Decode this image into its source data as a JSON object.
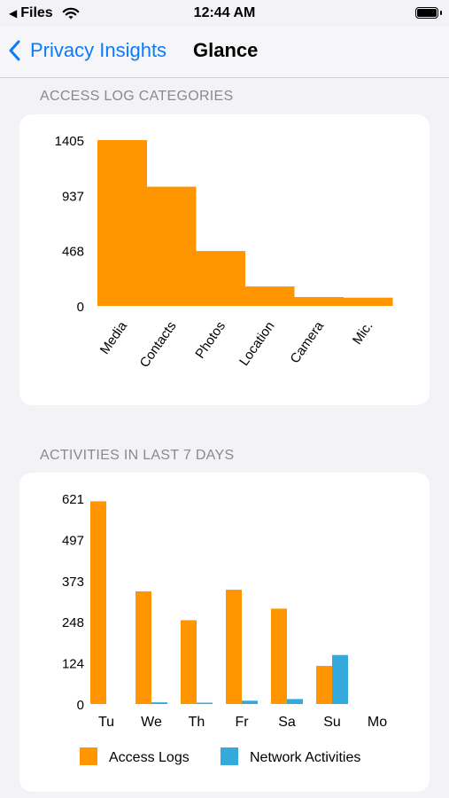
{
  "status_bar": {
    "back_app": "Files",
    "time": "12:44 AM"
  },
  "nav": {
    "back_label": "Privacy Insights",
    "title": "Glance"
  },
  "sections": {
    "categories_header": "ACCESS LOG CATEGORIES",
    "activities_header": "ACTIVITIES IN LAST 7 DAYS"
  },
  "colors": {
    "access_logs": "#ff9500",
    "network_activities": "#34aadc"
  },
  "chart_data": [
    {
      "type": "bar",
      "categories": [
        "Media",
        "Contacts",
        "Photos",
        "Location",
        "Camera",
        "Mic."
      ],
      "values": [
        1405,
        1010,
        465,
        165,
        75,
        70
      ],
      "yticks": [
        "0",
        "468",
        "937",
        "1405"
      ],
      "ylim": [
        0,
        1405
      ]
    },
    {
      "type": "bar",
      "categories": [
        "Tu",
        "We",
        "Th",
        "Fr",
        "Sa",
        "Su",
        "Mo"
      ],
      "series": [
        {
          "name": "Access Logs",
          "values": [
            612,
            340,
            253,
            345,
            288,
            115,
            0
          ]
        },
        {
          "name": "Network Activities",
          "values": [
            0,
            5,
            3,
            10,
            15,
            148,
            0
          ]
        }
      ],
      "yticks": [
        "0",
        "124",
        "248",
        "373",
        "497",
        "621"
      ],
      "ylim": [
        0,
        621
      ]
    }
  ]
}
